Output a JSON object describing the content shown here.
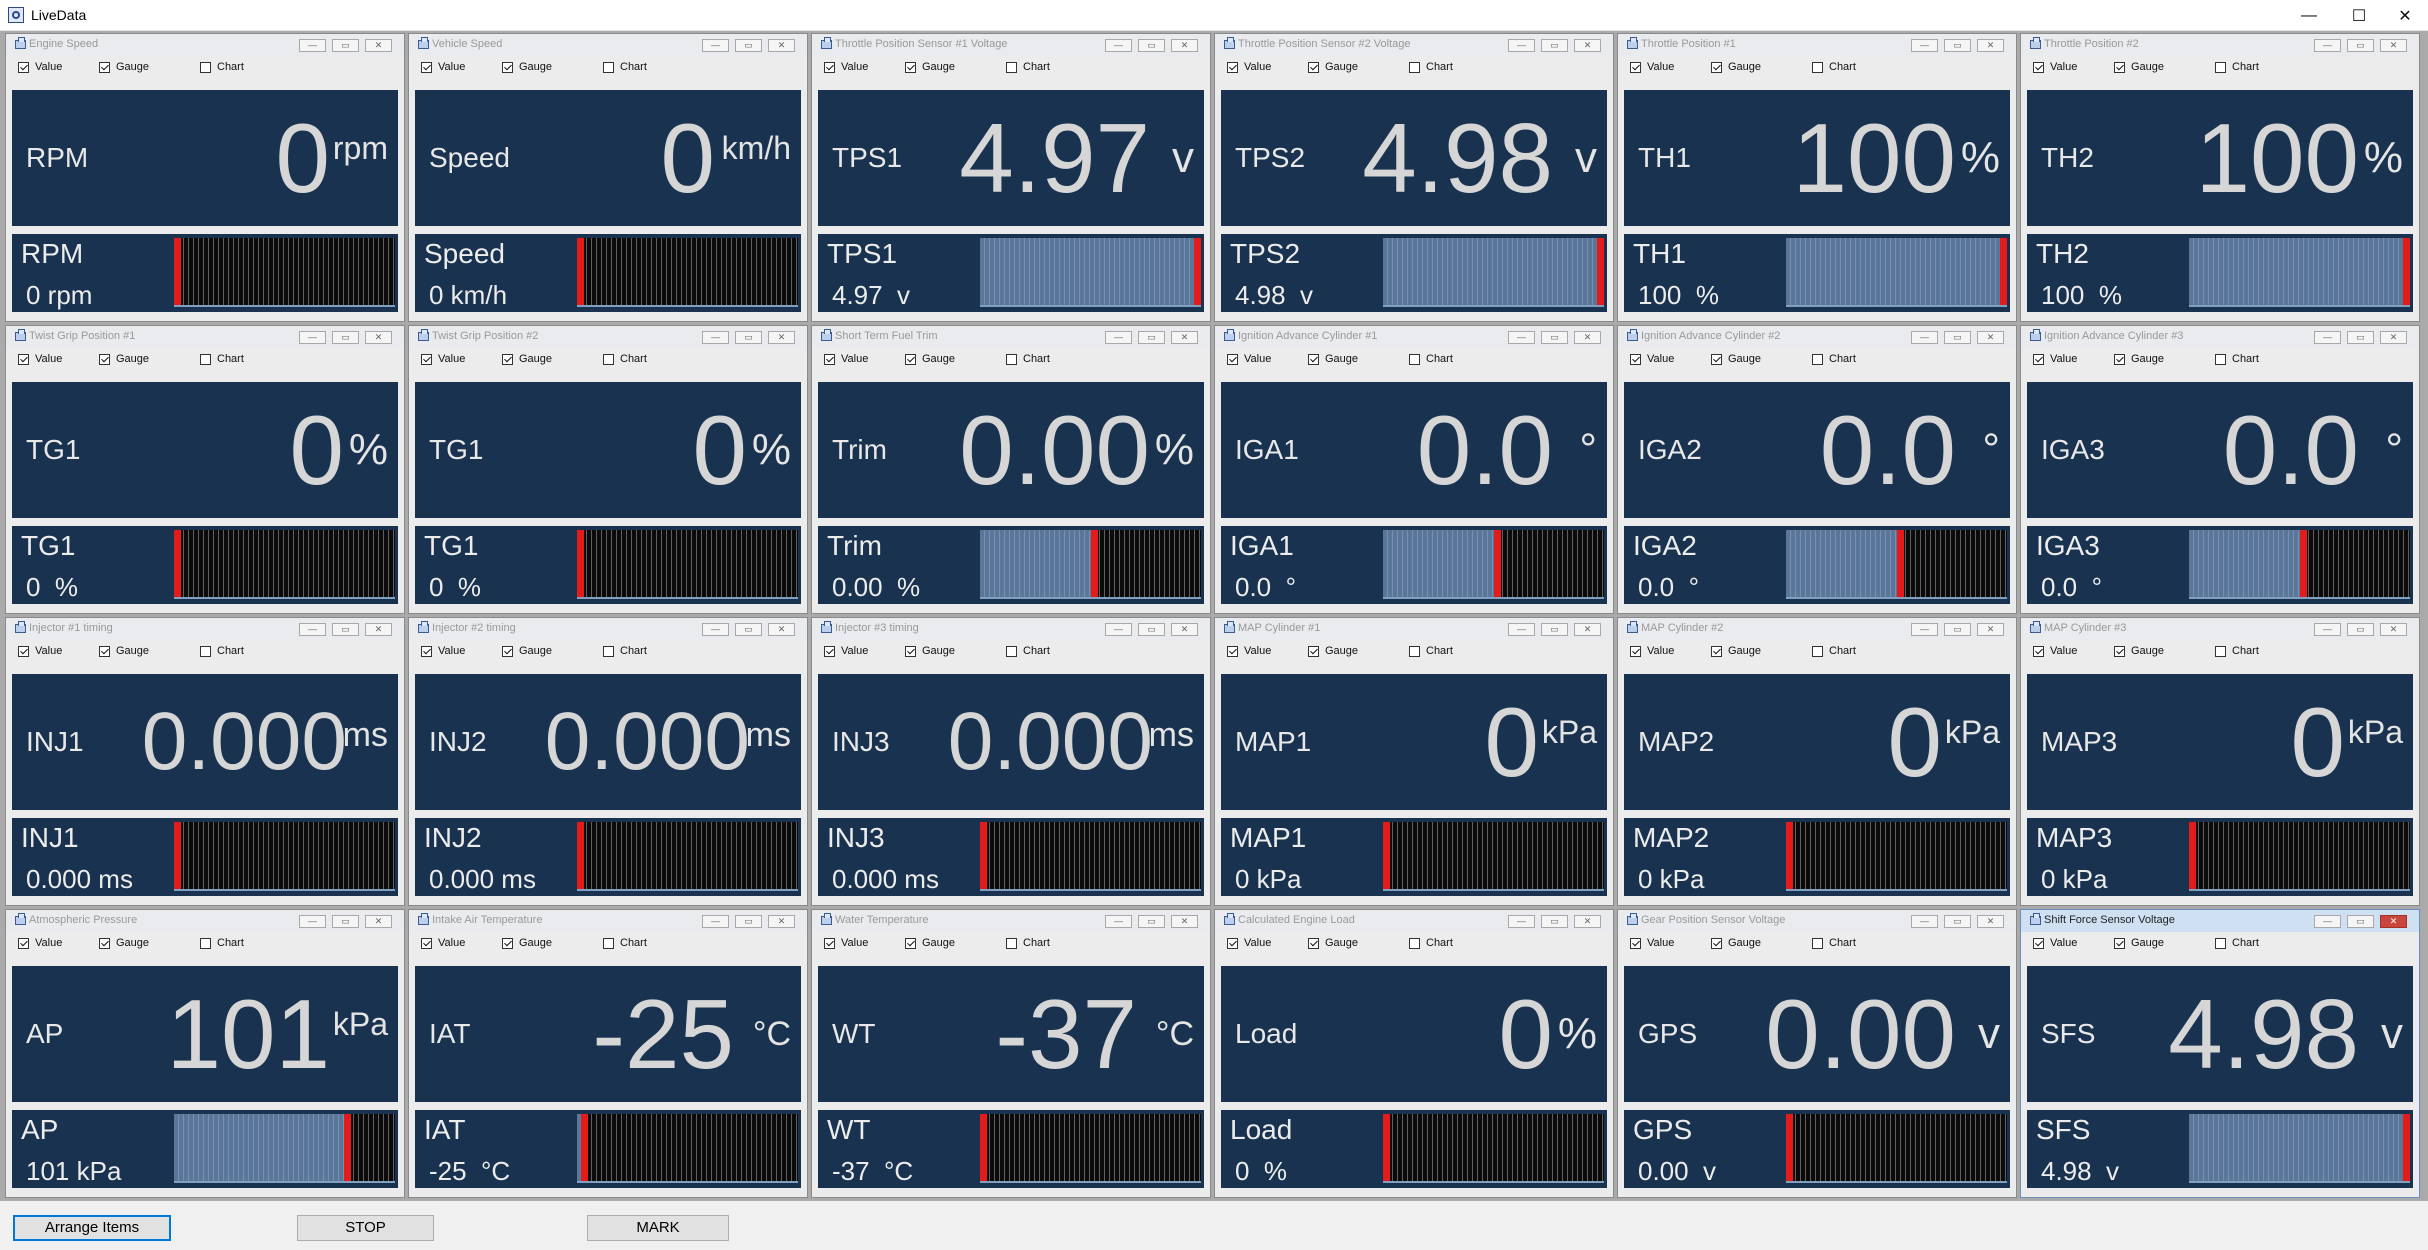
{
  "window": {
    "title": "LiveData",
    "minimize_glyph": "—",
    "maximize_glyph": "☐",
    "close_glyph": "✕"
  },
  "panel_controls": {
    "minimize_glyph": "—",
    "maximize_glyph": "▭",
    "close_glyph": "✕",
    "value_label": "Value",
    "gauge_label": "Gauge",
    "chart_label": "Chart"
  },
  "colors": {
    "panel_bg": "#18324f",
    "gauge_marker": "#e31b1b",
    "gauge_fill": "#5a7699"
  },
  "panels": [
    {
      "title": "Engine Speed",
      "label": "RPM",
      "number": "0",
      "unit": "rpm",
      "gauge_value": "0 rpm",
      "gauge_pct": 0,
      "value_checked": true,
      "gauge_checked": true,
      "chart_checked": false
    },
    {
      "title": "Vehicle Speed",
      "label": "Speed",
      "number": "0",
      "unit": "km/h",
      "gauge_value": "0 km/h",
      "gauge_pct": 0,
      "value_checked": true,
      "gauge_checked": true,
      "chart_checked": false
    },
    {
      "title": "Throttle Position Sensor #1 Voltage",
      "label": "TPS1",
      "number": "4.97",
      "unit": "v",
      "gauge_value": "4.97  v",
      "gauge_pct": 99.4,
      "value_checked": true,
      "gauge_checked": true,
      "chart_checked": false
    },
    {
      "title": "Throttle Position Sensor #2 Voltage",
      "label": "TPS2",
      "number": "4.98",
      "unit": "v",
      "gauge_value": "4.98  v",
      "gauge_pct": 99.6,
      "value_checked": true,
      "gauge_checked": true,
      "chart_checked": false
    },
    {
      "title": "Throttle Position #1",
      "label": "TH1",
      "number": "100",
      "unit": "%",
      "gauge_value": "100  %",
      "gauge_pct": 100,
      "value_checked": true,
      "gauge_checked": true,
      "chart_checked": false
    },
    {
      "title": "Throttle Position #2",
      "label": "TH2",
      "number": "100",
      "unit": "%",
      "gauge_value": "100  %",
      "gauge_pct": 100,
      "value_checked": true,
      "gauge_checked": true,
      "chart_checked": false
    },
    {
      "title": "Twist Grip Position #1",
      "label": "TG1",
      "number": "0",
      "unit": "%",
      "gauge_value": "0  %",
      "gauge_pct": 0,
      "value_checked": true,
      "gauge_checked": true,
      "chart_checked": false
    },
    {
      "title": "Twist Grip Position #2",
      "label": "TG1",
      "number": "0",
      "unit": "%",
      "gauge_value": "0  %",
      "gauge_pct": 0,
      "value_checked": true,
      "gauge_checked": true,
      "chart_checked": false
    },
    {
      "title": "Short Term Fuel Trim",
      "label": "Trim",
      "number": "0.00",
      "unit": "%",
      "gauge_value": "0.00  %",
      "gauge_pct": 50,
      "value_checked": true,
      "gauge_checked": true,
      "chart_checked": false
    },
    {
      "title": "Ignition Advance Cylinder #1",
      "label": "IGA1",
      "number": "0.0",
      "unit": "°",
      "gauge_value": "0.0  °",
      "gauge_pct": 50,
      "value_checked": true,
      "gauge_checked": true,
      "chart_checked": false
    },
    {
      "title": "Ignition Advance Cylinder #2",
      "label": "IGA2",
      "number": "0.0",
      "unit": "°",
      "gauge_value": "0.0  °",
      "gauge_pct": 50,
      "value_checked": true,
      "gauge_checked": true,
      "chart_checked": false
    },
    {
      "title": "Ignition Advance Cylinder #3",
      "label": "IGA3",
      "number": "0.0",
      "unit": "°",
      "gauge_value": "0.0  °",
      "gauge_pct": 50,
      "value_checked": true,
      "gauge_checked": true,
      "chart_checked": false
    },
    {
      "title": "Injector #1 timing",
      "label": "INJ1",
      "number": "0.000",
      "unit": "ms",
      "gauge_value": "0.000 ms",
      "gauge_pct": 0,
      "value_checked": true,
      "gauge_checked": true,
      "chart_checked": false
    },
    {
      "title": "Injector #2 timing",
      "label": "INJ2",
      "number": "0.000",
      "unit": "ms",
      "gauge_value": "0.000 ms",
      "gauge_pct": 0,
      "value_checked": true,
      "gauge_checked": true,
      "chart_checked": false
    },
    {
      "title": "Injector #3 timing",
      "label": "INJ3",
      "number": "0.000",
      "unit": "ms",
      "gauge_value": "0.000 ms",
      "gauge_pct": 0,
      "value_checked": true,
      "gauge_checked": true,
      "chart_checked": false
    },
    {
      "title": "MAP Cylinder #1",
      "label": "MAP1",
      "number": "0",
      "unit": "kPa",
      "gauge_value": "0 kPa",
      "gauge_pct": 0,
      "value_checked": true,
      "gauge_checked": true,
      "chart_checked": false
    },
    {
      "title": "MAP Cylinder #2",
      "label": "MAP2",
      "number": "0",
      "unit": "kPa",
      "gauge_value": "0 kPa",
      "gauge_pct": 0,
      "value_checked": true,
      "gauge_checked": true,
      "chart_checked": false
    },
    {
      "title": "MAP Cylinder #3",
      "label": "MAP3",
      "number": "0",
      "unit": "kPa",
      "gauge_value": "0 kPa",
      "gauge_pct": 0,
      "value_checked": true,
      "gauge_checked": true,
      "chart_checked": false
    },
    {
      "title": "Atmospheric Pressure",
      "label": "AP",
      "number": "101",
      "unit": "kPa",
      "gauge_value": "101 kPa",
      "gauge_pct": 77,
      "value_checked": true,
      "gauge_checked": true,
      "chart_checked": false
    },
    {
      "title": "Intake Air Temperature",
      "label": "IAT",
      "number": "-25",
      "unit": "°C",
      "gauge_value": "-25  °C",
      "gauge_pct": 2,
      "value_checked": true,
      "gauge_checked": true,
      "chart_checked": false
    },
    {
      "title": "Water Temperature",
      "label": "WT",
      "number": "-37",
      "unit": "°C",
      "gauge_value": "-37  °C",
      "gauge_pct": 0,
      "value_checked": true,
      "gauge_checked": true,
      "chart_checked": false
    },
    {
      "title": "Calculated Engine Load",
      "label": "Load",
      "number": "0",
      "unit": "%",
      "gauge_value": "0  %",
      "gauge_pct": 0,
      "value_checked": true,
      "gauge_checked": true,
      "chart_checked": false
    },
    {
      "title": "Gear Position Sensor Voltage",
      "label": "GPS",
      "number": "0.00",
      "unit": "v",
      "gauge_value": "0.00  v",
      "gauge_pct": 0,
      "value_checked": true,
      "gauge_checked": true,
      "chart_checked": false
    },
    {
      "title": "Shift Force Sensor Voltage",
      "label": "SFS",
      "number": "4.98",
      "unit": "v",
      "gauge_value": "4.98  v",
      "gauge_pct": 99.6,
      "value_checked": true,
      "gauge_checked": true,
      "chart_checked": false,
      "active": true
    }
  ],
  "toolbar": {
    "arrange_label": "Arrange Items",
    "stop_label": "STOP",
    "mark_label": "MARK"
  }
}
